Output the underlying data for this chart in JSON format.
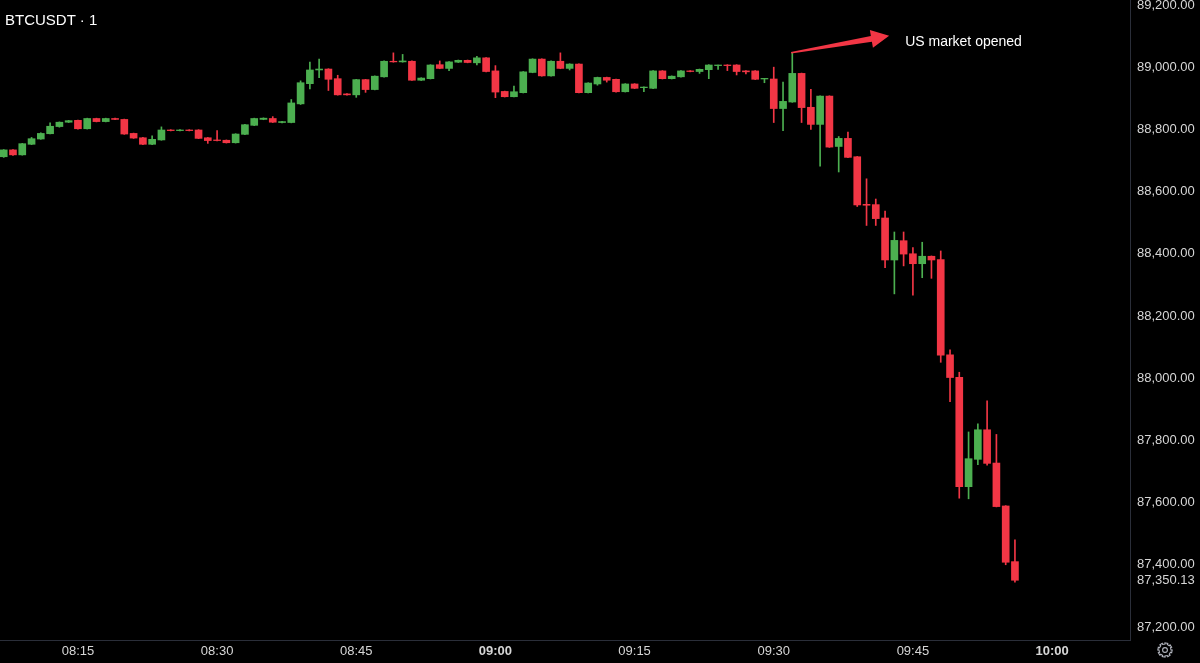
{
  "chart_data": {
    "type": "candlestick",
    "title": "BTCUSDT · 1",
    "x": [
      8.1167,
      8.1333,
      8.15,
      8.1667,
      8.1833,
      8.2,
      8.2167,
      8.2333,
      8.25,
      8.2667,
      8.2833,
      8.3,
      8.3167,
      8.3333,
      8.35,
      8.3667,
      8.3833,
      8.4,
      8.4167,
      8.4333,
      8.45,
      8.4667,
      8.4833,
      8.5,
      8.5167,
      8.5333,
      8.55,
      8.5667,
      8.5833,
      8.6,
      8.6167,
      8.6333,
      8.65,
      8.6667,
      8.6833,
      8.7,
      8.7167,
      8.7333,
      8.75,
      8.7667,
      8.7833,
      8.8,
      8.8167,
      8.8333,
      8.85,
      8.8667,
      8.8833,
      8.9,
      8.9167,
      8.9333,
      8.95,
      8.9667,
      8.9833,
      9,
      9.0167,
      9.0333,
      9.05,
      9.0667,
      9.0833,
      9.1,
      9.1167,
      9.1333,
      9.15,
      9.1667,
      9.1833,
      9.2,
      9.2167,
      9.2333,
      9.25,
      9.2667,
      9.2833,
      9.3,
      9.3167,
      9.3333,
      9.35,
      9.3667,
      9.3833,
      9.4,
      9.4167,
      9.4333,
      9.45,
      9.4667,
      9.4833,
      9.5,
      9.5167,
      9.5333,
      9.55,
      9.5667,
      9.5833,
      9.6,
      9.6167,
      9.6333,
      9.65,
      9.6667,
      9.6833,
      9.7,
      9.7167,
      9.7333,
      9.75,
      9.7667,
      9.7833,
      9.8,
      9.8167,
      9.8333,
      9.85,
      9.8667,
      9.8833,
      9.9,
      9.9167,
      9.9333
    ],
    "ohlc": [
      [
        88712,
        88735,
        88710,
        88734
      ],
      [
        88734,
        88735,
        88716,
        88718
      ],
      [
        88718,
        88755,
        88717,
        88754
      ],
      [
        88752,
        88774,
        88751,
        88770
      ],
      [
        88769,
        88789,
        88768,
        88787
      ],
      [
        88786,
        88821,
        88785,
        88810
      ],
      [
        88809,
        88824,
        88807,
        88823
      ],
      [
        88823,
        88829,
        88822,
        88828
      ],
      [
        88829,
        88830,
        88801,
        88802
      ],
      [
        88802,
        88836,
        88801,
        88835
      ],
      [
        88835,
        88836,
        88824,
        88825
      ],
      [
        88825,
        88836,
        88824,
        88835
      ],
      [
        88835,
        88836,
        88831,
        88832
      ],
      [
        88832,
        88833,
        88784,
        88785
      ],
      [
        88787,
        88788,
        88771,
        88772
      ],
      [
        88773,
        88774,
        88751,
        88752
      ],
      [
        88752,
        88779,
        88751,
        88768
      ],
      [
        88766,
        88808,
        88765,
        88798
      ],
      [
        88798,
        88799,
        88795,
        88796
      ],
      [
        88796,
        88799,
        88795,
        88798
      ],
      [
        88798,
        88799,
        88795,
        88796
      ],
      [
        88798,
        88799,
        88770,
        88771
      ],
      [
        88773,
        88774,
        88755,
        88764
      ],
      [
        88766,
        88796,
        88763,
        88764
      ],
      [
        88765,
        88766,
        88756,
        88757
      ],
      [
        88757,
        88786,
        88756,
        88785
      ],
      [
        88784,
        88816,
        88783,
        88815
      ],
      [
        88813,
        88836,
        88812,
        88835
      ],
      [
        88832,
        88837,
        88831,
        88836
      ],
      [
        88835,
        88841,
        88822,
        88823
      ],
      [
        88822,
        88826,
        88821,
        88825
      ],
      [
        88822,
        88896,
        88821,
        88885
      ],
      [
        88882,
        88956,
        88880,
        88950
      ],
      [
        88947,
        89016,
        88930,
        88991
      ],
      [
        88991,
        89026,
        88966,
        88994
      ],
      [
        88994,
        88995,
        88925,
        88961
      ],
      [
        88963,
        88974,
        88910,
        88911
      ],
      [
        88914,
        88915,
        88910,
        88911
      ],
      [
        88911,
        88961,
        88903,
        88960
      ],
      [
        88960,
        88961,
        88919,
        88928
      ],
      [
        88928,
        88972,
        88927,
        88971
      ],
      [
        88969,
        89020,
        88968,
        89019
      ],
      [
        89019,
        89046,
        89016,
        89017
      ],
      [
        89017,
        89041,
        89016,
        89020
      ],
      [
        89019,
        89020,
        88957,
        88958
      ],
      [
        88958,
        88966,
        88957,
        88965
      ],
      [
        88963,
        89008,
        88962,
        89007
      ],
      [
        89008,
        89020,
        88995,
        88996
      ],
      [
        88996,
        89018,
        88989,
        89017
      ],
      [
        89016,
        89023,
        89015,
        89022
      ],
      [
        89022,
        89023,
        89014,
        89015
      ],
      [
        89014,
        89035,
        89007,
        89030
      ],
      [
        89030,
        89031,
        88985,
        88986
      ],
      [
        88988,
        89005,
        88902,
        88920
      ],
      [
        88922,
        88923,
        88904,
        88905
      ],
      [
        88905,
        88939,
        88904,
        88921
      ],
      [
        88918,
        88986,
        88917,
        88985
      ],
      [
        88983,
        89027,
        88982,
        89026
      ],
      [
        89026,
        89027,
        88971,
        88972
      ],
      [
        88972,
        89020,
        88971,
        89019
      ],
      [
        89019,
        89046,
        88995,
        88996
      ],
      [
        88996,
        89011,
        88991,
        89010
      ],
      [
        89010,
        89011,
        88917,
        88918
      ],
      [
        88918,
        88950,
        88917,
        88949
      ],
      [
        88946,
        88968,
        88942,
        88967
      ],
      [
        88967,
        88968,
        88952,
        88958
      ],
      [
        88961,
        88962,
        88920,
        88921
      ],
      [
        88921,
        88947,
        88920,
        88946
      ],
      [
        88946,
        88947,
        88931,
        88932
      ],
      [
        88934,
        88937,
        88921,
        88936
      ],
      [
        88932,
        88989,
        88931,
        88988
      ],
      [
        88988,
        88989,
        88962,
        88963
      ],
      [
        88963,
        88972,
        88962,
        88971
      ],
      [
        88969,
        88989,
        88968,
        88988
      ],
      [
        88988,
        88989,
        88985,
        88986
      ],
      [
        88986,
        88994,
        88980,
        88993
      ],
      [
        88992,
        89008,
        88963,
        89007
      ],
      [
        89005,
        89007,
        88993,
        89007
      ],
      [
        89007,
        89008,
        88989,
        89005
      ],
      [
        89007,
        89008,
        88975,
        88986
      ],
      [
        88988,
        88989,
        88978,
        88985
      ],
      [
        88988,
        88989,
        88960,
        88961
      ],
      [
        88962,
        88964,
        88950,
        88964
      ],
      [
        88962,
        89000,
        88822,
        88867
      ],
      [
        88867,
        88952,
        88796,
        88890
      ],
      [
        88888,
        89047,
        88887,
        88980
      ],
      [
        88980,
        88981,
        88822,
        88870
      ],
      [
        88871,
        88929,
        88800,
        88816
      ],
      [
        88816,
        88908,
        88682,
        88907
      ],
      [
        88907,
        88908,
        88742,
        88743
      ],
      [
        88745,
        88777,
        88663,
        88771
      ],
      [
        88771,
        88791,
        88709,
        88710
      ],
      [
        88712,
        88713,
        88552,
        88557
      ],
      [
        88559,
        88641,
        88491,
        88556
      ],
      [
        88558,
        88576,
        88491,
        88513
      ],
      [
        88515,
        88537,
        88355,
        88380
      ],
      [
        88380,
        88470,
        88271,
        88443
      ],
      [
        88442,
        88470,
        88361,
        88399
      ],
      [
        88400,
        88420,
        88267,
        88368
      ],
      [
        88368,
        88437,
        88323,
        88392
      ],
      [
        88392,
        88393,
        88321,
        88380
      ],
      [
        88381,
        88409,
        88051,
        88074
      ],
      [
        88075,
        88091,
        87924,
        88002
      ],
      [
        88003,
        88019,
        87614,
        87651
      ],
      [
        87651,
        87827,
        87612,
        87741
      ],
      [
        87739,
        87853,
        87722,
        87834
      ],
      [
        87834,
        87927,
        87720,
        87726
      ],
      [
        87727,
        87819,
        87586,
        87587
      ],
      [
        87589,
        87590,
        87400,
        87408
      ],
      [
        87410,
        87480,
        87344,
        87350.13
      ]
    ],
    "colors": [
      "#4caf50",
      "#f23645",
      "#4caf50",
      "#4caf50",
      "#4caf50",
      "#4caf50",
      "#4caf50",
      "#4caf50",
      "#f23645",
      "#4caf50",
      "#f23645",
      "#4caf50",
      "#f23645",
      "#f23645",
      "#f23645",
      "#f23645",
      "#4caf50",
      "#4caf50",
      "#f23645",
      "#4caf50",
      "#f23645",
      "#f23645",
      "#f23645",
      "#f23645",
      "#f23645",
      "#4caf50",
      "#4caf50",
      "#4caf50",
      "#4caf50",
      "#f23645",
      "#4caf50",
      "#4caf50",
      "#4caf50",
      "#4caf50",
      "#4caf50",
      "#f23645",
      "#f23645",
      "#f23645",
      "#4caf50",
      "#f23645",
      "#4caf50",
      "#4caf50",
      "#f23645",
      "#4caf50",
      "#f23645",
      "#4caf50",
      "#4caf50",
      "#f23645",
      "#4caf50",
      "#4caf50",
      "#f23645",
      "#4caf50",
      "#f23645",
      "#f23645",
      "#f23645",
      "#4caf50",
      "#4caf50",
      "#4caf50",
      "#f23645",
      "#4caf50",
      "#f23645",
      "#4caf50",
      "#f23645",
      "#4caf50",
      "#4caf50",
      "#f23645",
      "#f23645",
      "#4caf50",
      "#f23645",
      "#4caf50",
      "#4caf50",
      "#f23645",
      "#4caf50",
      "#4caf50",
      "#f23645",
      "#4caf50",
      "#4caf50",
      "#4caf50",
      "#f23645",
      "#f23645",
      "#f23645",
      "#f23645",
      "#4caf50",
      "#f23645",
      "#4caf50",
      "#4caf50",
      "#f23645",
      "#f23645",
      "#4caf50",
      "#f23645",
      "#4caf50",
      "#f23645",
      "#f23645",
      "#f23645",
      "#f23645",
      "#f23645",
      "#4caf50",
      "#f23645",
      "#f23645",
      "#4caf50",
      "#f23645",
      "#f23645",
      "#f23645",
      "#f23645",
      "#4caf50",
      "#4caf50",
      "#f23645",
      "#f23645",
      "#f23645",
      "#f23645"
    ],
    "xlim": [
      8.11,
      10.14
    ],
    "xticks": [
      {
        "value": 8.25,
        "label": "08:15"
      },
      {
        "value": 8.5,
        "label": "08:30"
      },
      {
        "value": 8.75,
        "label": "08:45"
      },
      {
        "value": 9,
        "label": "09:00"
      },
      {
        "value": 9.25,
        "label": "09:15"
      },
      {
        "value": 9.5,
        "label": "09:30"
      },
      {
        "value": 9.75,
        "label": "09:45"
      },
      {
        "value": 10,
        "label": "10:00"
      }
    ],
    "ylim": [
      87158,
      89216
    ],
    "yticks": [
      {
        "value": 87200,
        "label": "87,200.00"
      },
      {
        "value": 87350.13,
        "label": "87,350.13"
      },
      {
        "value": 87400,
        "label": "87,400.00"
      },
      {
        "value": 87600,
        "label": "87,600.00"
      },
      {
        "value": 87800,
        "label": "87,800.00"
      },
      {
        "value": 88000,
        "label": "88,000.00"
      },
      {
        "value": 88200,
        "label": "88,200.00"
      },
      {
        "value": 88400,
        "label": "88,400.00"
      },
      {
        "value": 88600,
        "label": "88,600.00"
      },
      {
        "value": 88800,
        "label": "88,800.00"
      },
      {
        "value": 89000,
        "label": "89,000.00"
      },
      {
        "value": 89200,
        "label": "89,200.00"
      }
    ],
    "annotations": [
      "US market opened"
    ]
  }
}
